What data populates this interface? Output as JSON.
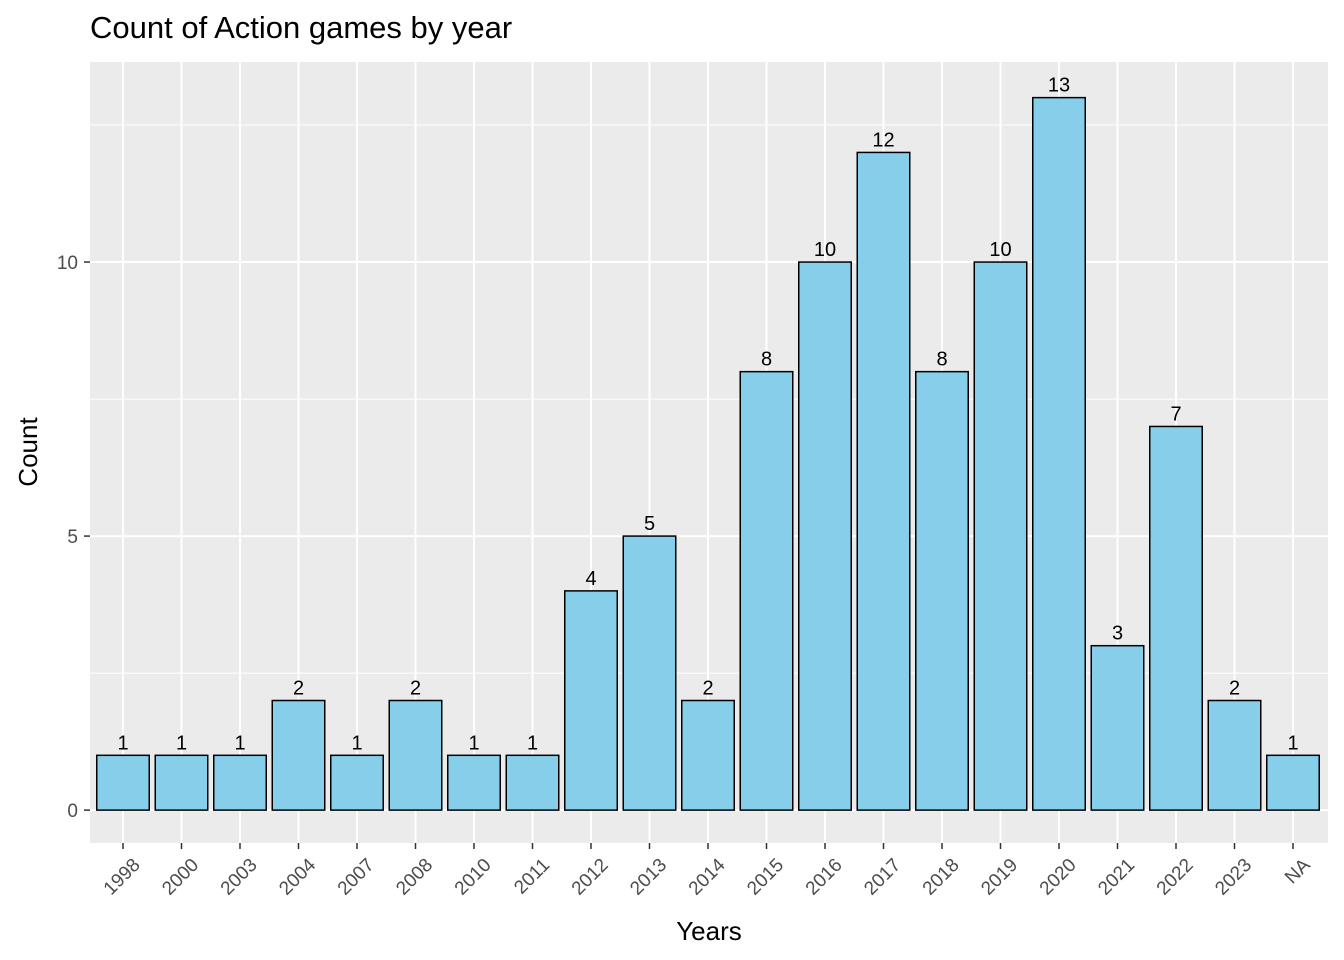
{
  "chart_data": {
    "type": "bar",
    "title": "Count of Action games by year",
    "xlabel": "Years",
    "ylabel": "Count",
    "categories": [
      "1998",
      "2000",
      "2003",
      "2004",
      "2007",
      "2008",
      "2010",
      "2011",
      "2012",
      "2013",
      "2014",
      "2015",
      "2016",
      "2017",
      "2018",
      "2019",
      "2020",
      "2021",
      "2022",
      "2023",
      "NA"
    ],
    "values": [
      1,
      1,
      1,
      2,
      1,
      2,
      1,
      1,
      4,
      5,
      2,
      8,
      10,
      12,
      8,
      10,
      13,
      3,
      7,
      2,
      1
    ],
    "y_ticks": [
      0,
      5,
      10
    ],
    "ylim": [
      -0.6,
      13.65
    ],
    "grid": true,
    "legend": "none",
    "colors": {
      "bar_fill": "#87CEEB",
      "bar_stroke": "#000000",
      "panel_bg": "#EBEBEB",
      "grid_major": "#FFFFFF",
      "tick_text": "#4D4D4D"
    }
  }
}
